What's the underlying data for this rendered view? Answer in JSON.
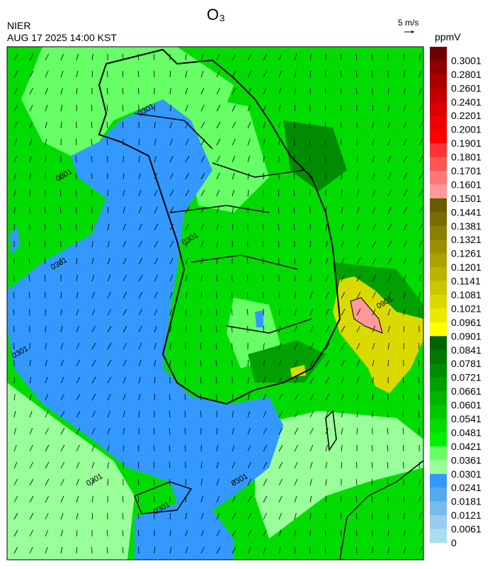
{
  "header": {
    "title": "O₃",
    "agency": "NIER",
    "datetime": "AUG 17 2025 14:00 KST",
    "vector_scale": "5 m/s",
    "unit": "ppmV"
  },
  "colorbar": {
    "ticks": [
      0.3001,
      0.2801,
      0.2601,
      0.2401,
      0.2201,
      0.2001,
      0.1901,
      0.1801,
      0.1701,
      0.1601,
      0.1501,
      0.1441,
      0.1381,
      0.1321,
      0.1261,
      0.1201,
      0.1141,
      0.1081,
      0.1021,
      0.0961,
      0.0901,
      0.0841,
      0.0781,
      0.0721,
      0.0661,
      0.0601,
      0.0541,
      0.0481,
      0.0421,
      0.0361,
      0.0301,
      0.0241,
      0.0181,
      0.0121,
      0.0061,
      0
    ],
    "colors": [
      "#700000",
      "#900000",
      "#a80000",
      "#c00000",
      "#d80000",
      "#ee0000",
      "#ff0000",
      "#ff3333",
      "#ff5555",
      "#ff7777",
      "#ff9999",
      "#6b5a00",
      "#7a6c00",
      "#8a7f00",
      "#9a9000",
      "#aaa200",
      "#bab400",
      "#cac600",
      "#dad800",
      "#eaea00",
      "#ffff00",
      "#006400",
      "#007800",
      "#008c00",
      "#00a000",
      "#00b400",
      "#00c800",
      "#00dc00",
      "#00f000",
      "#66ff66",
      "#99ff99",
      "#3399ff",
      "#55aaee",
      "#77bbee",
      "#99ccee",
      "#aaddee"
    ]
  },
  "contour_labels": [
    "0301",
    "0301",
    "0301",
    "0301",
    "0301",
    "0301",
    "0301",
    "0301",
    "0901"
  ]
}
